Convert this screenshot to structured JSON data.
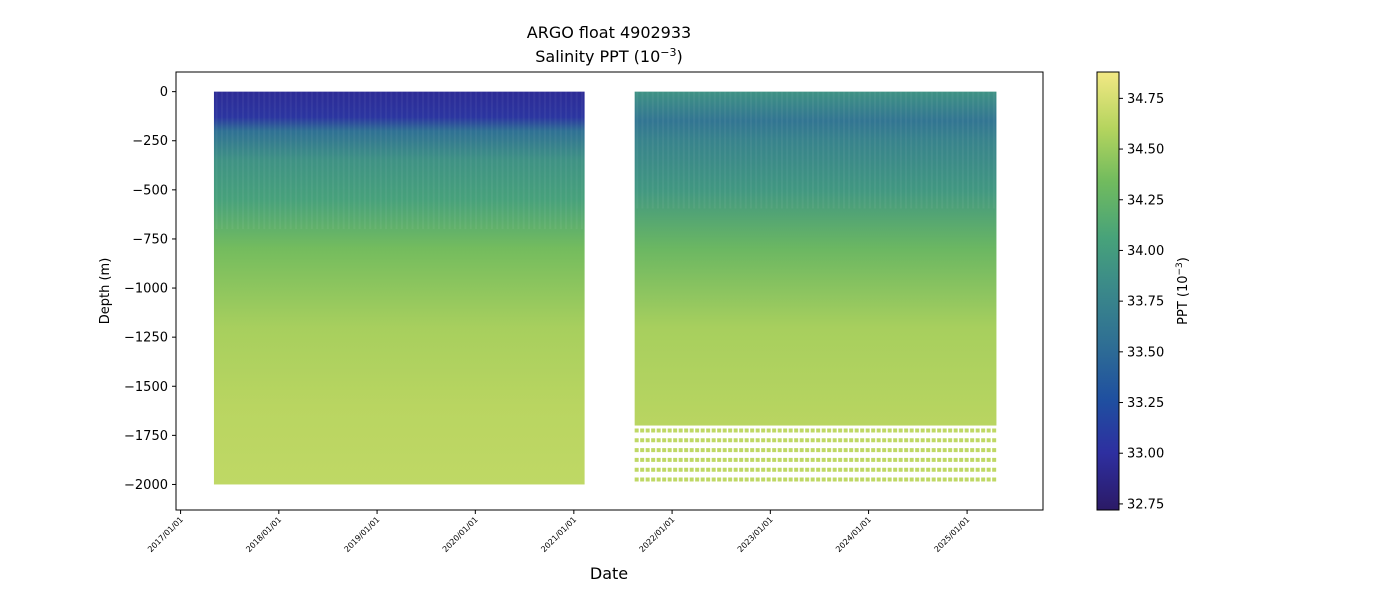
{
  "chart_data": {
    "type": "scatter",
    "title": "ARGO float 4902933",
    "subtitle_base": "Salinity PPT (10",
    "subtitle_exp": "−3",
    "subtitle_close": ")",
    "xlabel": "Date",
    "ylabel": "Depth (m)",
    "x_range": [
      "2016-12-15",
      "2025-10-10"
    ],
    "ylim": [
      -2130,
      100
    ],
    "y_ticks": [
      0,
      -250,
      -500,
      -750,
      -1000,
      -1250,
      -1500,
      -1750,
      -2000
    ],
    "y_tick_labels": [
      "0",
      "−250",
      "−500",
      "−750",
      "−1000",
      "−1250",
      "−1500",
      "−1750",
      "−2000"
    ],
    "x_ticks": [
      "2017-01-01",
      "2018-01-01",
      "2019-01-01",
      "2020-01-01",
      "2021-01-01",
      "2022-01-01",
      "2023-01-01",
      "2024-01-01",
      "2025-01-01"
    ],
    "x_tick_labels": [
      "2017/01/01",
      "2018/01/01",
      "2019/01/01",
      "2020/01/01",
      "2021/01/01",
      "2022/01/01",
      "2023/01/01",
      "2024/01/01",
      "2025/01/01"
    ],
    "series": [
      {
        "date_range": [
          "2017-05-05",
          "2021-02-10"
        ],
        "depth_range": [
          0,
          -2000
        ],
        "salinity_profile_ppt": [
          {
            "depth": 0,
            "salinity": 32.95
          },
          {
            "depth": -130,
            "salinity": 33.05
          },
          {
            "depth": -200,
            "salinity": 33.55
          },
          {
            "depth": -350,
            "salinity": 33.9
          },
          {
            "depth": -550,
            "salinity": 34.05
          },
          {
            "depth": -800,
            "salinity": 34.35
          },
          {
            "depth": -1200,
            "salinity": 34.55
          },
          {
            "depth": -1600,
            "salinity": 34.62
          },
          {
            "depth": -2000,
            "salinity": 34.65
          }
        ]
      },
      {
        "date_range": [
          "2021-08-15",
          "2025-04-20"
        ],
        "depth_range": [
          0,
          -1700
        ],
        "salinity_profile_ppt": [
          {
            "depth": 0,
            "salinity": 33.9
          },
          {
            "depth": -150,
            "salinity": 33.6
          },
          {
            "depth": -250,
            "salinity": 33.75
          },
          {
            "depth": -500,
            "salinity": 33.95
          },
          {
            "depth": -800,
            "salinity": 34.3
          },
          {
            "depth": -1200,
            "salinity": 34.55
          },
          {
            "depth": -1700,
            "salinity": 34.62
          }
        ],
        "sparse_deep_levels_m": [
          -1725,
          -1775,
          -1825,
          -1875,
          -1925,
          -1975
        ],
        "sparse_deep_salinity_ppt": 34.65
      }
    ],
    "colorbar": {
      "label_base": "PPT (10",
      "label_exp": "−3",
      "label_close": ")",
      "range": [
        32.72,
        34.88
      ],
      "ticks": [
        32.75,
        33.0,
        33.25,
        33.5,
        33.75,
        34.0,
        34.25,
        34.5,
        34.75
      ],
      "tick_labels": [
        "32.75",
        "33.00",
        "33.25",
        "33.50",
        "33.75",
        "34.00",
        "34.25",
        "34.50",
        "34.75"
      ],
      "colormap_stops": [
        {
          "pos": 0.0,
          "color": "#2b1a66"
        },
        {
          "pos": 0.13,
          "color": "#2e2fa0"
        },
        {
          "pos": 0.25,
          "color": "#1f4fa0"
        },
        {
          "pos": 0.38,
          "color": "#2f6f94"
        },
        {
          "pos": 0.52,
          "color": "#3c8c88"
        },
        {
          "pos": 0.62,
          "color": "#47a27a"
        },
        {
          "pos": 0.75,
          "color": "#71bb5e"
        },
        {
          "pos": 0.87,
          "color": "#b4d45e"
        },
        {
          "pos": 1.0,
          "color": "#f2e884"
        }
      ]
    },
    "grid": false
  }
}
